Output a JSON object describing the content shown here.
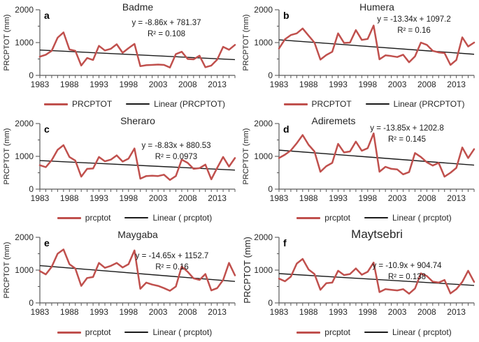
{
  "colors": {
    "series": "#c0504d",
    "trend": "#1a1a1a",
    "axis": "#595959",
    "text": "#262626"
  },
  "chart_data": [
    {
      "type": "line",
      "panel_letter": "a",
      "title": "Badme",
      "ylabel": "PRCPTOT (mm)",
      "equation": "y = -8.86x + 781.37",
      "r_squared": "R² = 0.108",
      "trend": {
        "slope": -8.86,
        "intercept": 781.37
      },
      "series_label": "PRCPTOT",
      "trend_label": "Linear (PRCPTOT)",
      "x": {
        "start": 1983,
        "end": 2016,
        "step": 1
      },
      "x_ticks": [
        1983,
        1988,
        1993,
        1998,
        2003,
        2008,
        2013
      ],
      "y_ticks": [
        0,
        1000,
        2000
      ],
      "y_minor_ticks": [
        500,
        1500
      ],
      "ylim": [
        0,
        2000
      ],
      "legend_position": "bottom",
      "grid": false,
      "values": [
        570,
        630,
        750,
        1150,
        1310,
        790,
        750,
        300,
        530,
        470,
        900,
        760,
        810,
        950,
        690,
        830,
        960,
        280,
        310,
        320,
        330,
        320,
        240,
        650,
        720,
        500,
        490,
        600,
        250,
        300,
        480,
        870,
        780,
        930
      ]
    },
    {
      "type": "line",
      "panel_letter": "b",
      "title": "Humera",
      "ylabel": "PRCPTOT (mm)",
      "equation": "y = -13.34x + 1097.2",
      "r_squared": "R² = 0.16",
      "trend": {
        "slope": -13.34,
        "intercept": 1097.2
      },
      "series_label": "PRCPTOT",
      "trend_label": "Linear (PRCPTOT)",
      "x": {
        "start": 1983,
        "end": 2016,
        "step": 1
      },
      "x_ticks": [
        1983,
        1988,
        1993,
        1998,
        2003,
        2008,
        2013
      ],
      "y_ticks": [
        0,
        1000,
        2000
      ],
      "y_minor_ticks": [
        500,
        1500
      ],
      "ylim": [
        0,
        2000
      ],
      "legend_position": "bottom",
      "grid": false,
      "values": [
        820,
        1100,
        1230,
        1280,
        1430,
        1210,
        1000,
        480,
        620,
        720,
        1280,
        990,
        1000,
        1380,
        1080,
        1110,
        1520,
        490,
        610,
        590,
        560,
        630,
        400,
        580,
        1000,
        930,
        750,
        700,
        680,
        320,
        470,
        1160,
        880,
        1000
      ]
    },
    {
      "type": "line",
      "panel_letter": "c",
      "title": "Sheraro",
      "ylabel": "PRCPTOT (mm)",
      "equation": "y = -8.83x + 880.53",
      "r_squared": "R² = 0.0973",
      "trend": {
        "slope": -8.83,
        "intercept": 880.53
      },
      "series_label": "prcptot",
      "trend_label": "Linear ( prcptot)",
      "x": {
        "start": 1983,
        "end": 2016,
        "step": 1
      },
      "x_ticks": [
        1983,
        1988,
        1993,
        1998,
        2003,
        2008,
        2013
      ],
      "y_ticks": [
        0,
        1000,
        2000
      ],
      "y_minor_ticks": [
        500,
        1500
      ],
      "ylim": [
        0,
        2000
      ],
      "legend_position": "bottom",
      "grid": false,
      "values": [
        730,
        670,
        880,
        1200,
        1340,
        980,
        870,
        380,
        620,
        630,
        980,
        850,
        900,
        1030,
        840,
        930,
        1240,
        320,
        400,
        410,
        400,
        440,
        280,
        400,
        900,
        800,
        620,
        640,
        750,
        300,
        650,
        980,
        690,
        950
      ]
    },
    {
      "type": "line",
      "panel_letter": "d",
      "title": "Adiremets",
      "ylabel": "PRCPTOT (mm)",
      "equation": "y = -13.85x + 1202.8",
      "r_squared": "R² = 0.145",
      "trend": {
        "slope": -13.85,
        "intercept": 1202.8
      },
      "series_label": "prcptot",
      "trend_label": "Linear ( prcptot)",
      "x": {
        "start": 1983,
        "end": 2016,
        "step": 1
      },
      "x_ticks": [
        1983,
        1988,
        1993,
        1998,
        2003,
        2008,
        2013
      ],
      "y_ticks": [
        0,
        1000,
        2000
      ],
      "y_minor_ticks": [
        500,
        1500
      ],
      "ylim": [
        0,
        2000
      ],
      "legend_position": "bottom",
      "grid": false,
      "values": [
        950,
        1050,
        1180,
        1400,
        1650,
        1350,
        1150,
        530,
        700,
        800,
        1380,
        1120,
        1150,
        1450,
        1170,
        1250,
        1700,
        530,
        680,
        620,
        600,
        450,
        520,
        1100,
        980,
        820,
        720,
        800,
        380,
        500,
        650,
        1270,
        950,
        1220
      ]
    },
    {
      "type": "line",
      "panel_letter": "e",
      "title": "Maygaba",
      "ylabel": "PRCPTOT (mm)",
      "equation": "y = -14.65x + 1152.7",
      "r_squared": "R² = 0.16",
      "trend": {
        "slope": -14.65,
        "intercept": 1152.7
      },
      "series_label": "prcptot",
      "trend_label": "Linear ( prcptot)",
      "x": {
        "start": 1983,
        "end": 2016,
        "step": 1
      },
      "x_ticks": [
        1983,
        1988,
        1993,
        1998,
        2003,
        2008,
        2013
      ],
      "y_ticks": [
        0,
        1000,
        2000
      ],
      "y_minor_ticks": [
        500,
        1500
      ],
      "ylim": [
        0,
        2000
      ],
      "legend_position": "bottom",
      "grid": false,
      "values": [
        970,
        870,
        1100,
        1500,
        1630,
        1180,
        1050,
        520,
        760,
        790,
        1220,
        1070,
        1130,
        1220,
        1080,
        1180,
        1600,
        430,
        620,
        560,
        520,
        450,
        370,
        500,
        1110,
        950,
        750,
        700,
        880,
        380,
        450,
        700,
        1220,
        840
      ]
    },
    {
      "type": "line",
      "panel_letter": "f",
      "title": "Maytsebri",
      "ylabel": "PRCPTOT (mm)",
      "equation": "y = -10.9x + 904.74",
      "r_squared": "R² = 0.138",
      "trend": {
        "slope": -10.9,
        "intercept": 904.74
      },
      "series_label": "prcptot",
      "trend_label": "Linear ( prcptot)",
      "x": {
        "start": 1983,
        "end": 2016,
        "step": 1
      },
      "x_ticks": [
        1983,
        1988,
        1993,
        1998,
        2003,
        2008,
        2013
      ],
      "y_ticks": [
        0,
        1000,
        2000
      ],
      "y_minor_ticks": [
        500,
        1500
      ],
      "ylim": [
        0,
        2000
      ],
      "legend_position": "bottom",
      "grid": false,
      "values": [
        740,
        660,
        800,
        1200,
        1340,
        1020,
        880,
        400,
        600,
        620,
        980,
        850,
        880,
        1050,
        860,
        950,
        1230,
        330,
        420,
        400,
        380,
        420,
        280,
        440,
        900,
        820,
        650,
        620,
        700,
        290,
        420,
        640,
        980,
        640
      ]
    }
  ]
}
